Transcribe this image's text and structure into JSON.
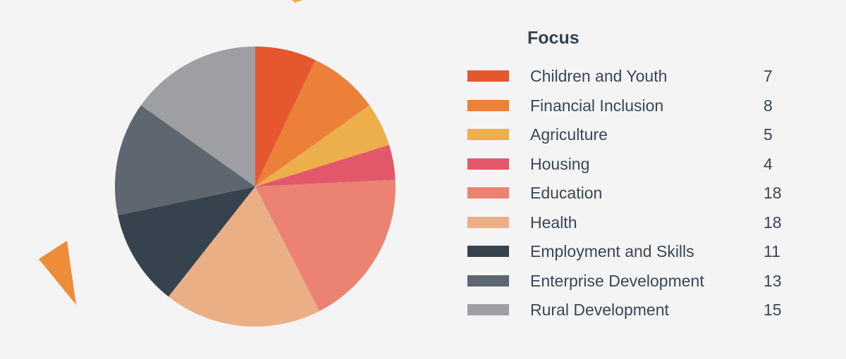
{
  "chart_data": {
    "type": "pie",
    "title": "Focus",
    "slices": [
      {
        "label": "Children and Youth",
        "value": 7,
        "color": "#e5582f"
      },
      {
        "label": "Financial Inclusion",
        "value": 8,
        "color": "#ec8039"
      },
      {
        "label": "Agriculture",
        "value": 5,
        "color": "#edae4c"
      },
      {
        "label": "Housing",
        "value": 4,
        "color": "#e2586a"
      },
      {
        "label": "Education",
        "value": 18,
        "color": "#eb8272"
      },
      {
        "label": "Health",
        "value": 18,
        "color": "#ebaf85"
      },
      {
        "label": "Employment and Skills",
        "value": 11,
        "color": "#36434f"
      },
      {
        "label": "Enterprise Development",
        "value": 13,
        "color": "#5e6670"
      },
      {
        "label": "Rural Development",
        "value": 15,
        "color": "#9d9fa3"
      }
    ],
    "start_angle": "12 o'clock",
    "direction": "clockwise",
    "legend_position": "right"
  },
  "decorations": {
    "triangle_color": "#ee8c37"
  }
}
